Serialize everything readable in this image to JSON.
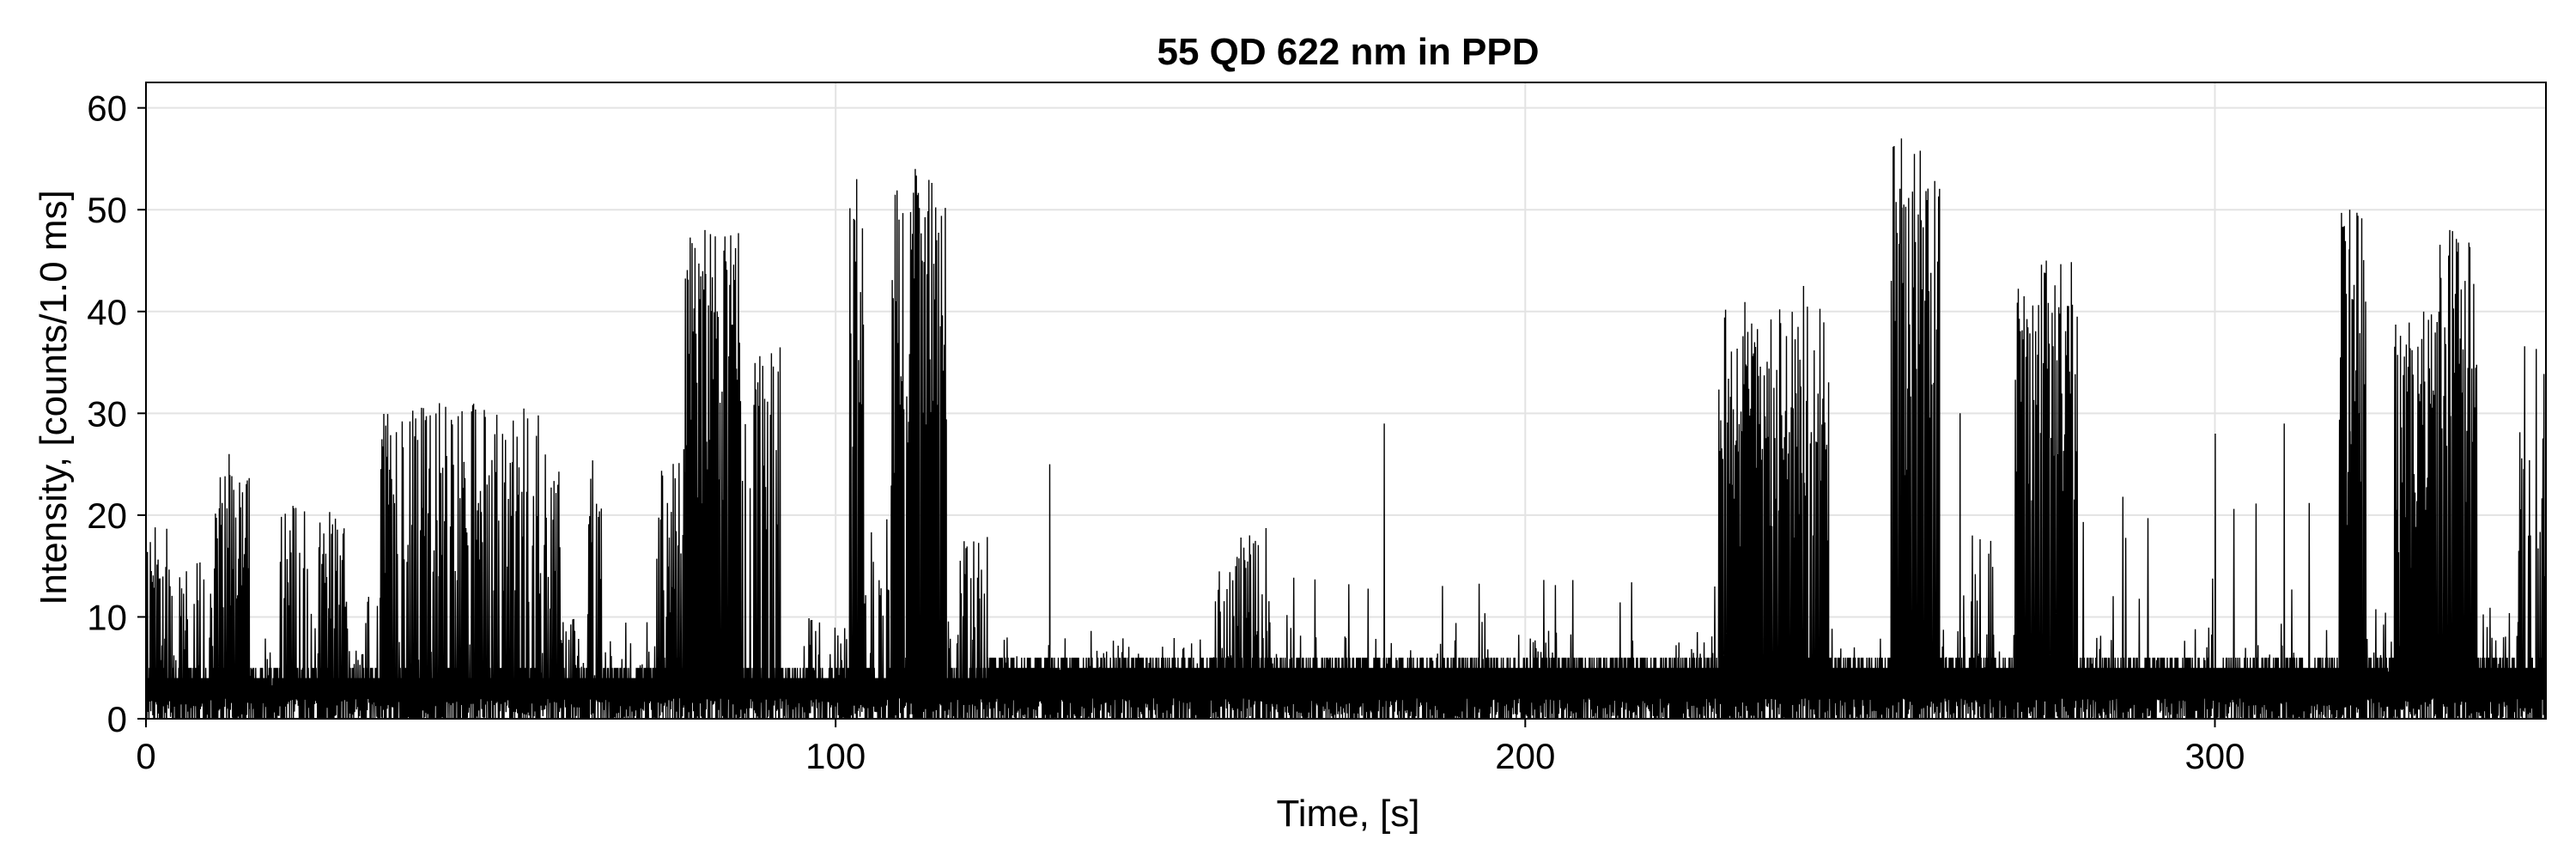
{
  "chart_data": {
    "type": "line",
    "title": "55 QD 622 nm in PPD",
    "xlabel": "Time, [s]",
    "ylabel": "Intensity, [counts/1.0 ms]",
    "xlim": [
      0,
      348
    ],
    "ylim": [
      0,
      62.5
    ],
    "xticks": [
      0,
      100,
      200,
      300
    ],
    "xtick_labels": [
      "0",
      "100",
      "200",
      "300"
    ],
    "yticks": [
      0,
      10,
      20,
      30,
      40,
      50,
      60
    ],
    "ytick_labels": [
      "0",
      "10",
      "20",
      "30",
      "40",
      "50",
      "60"
    ],
    "grid": true,
    "series": [
      {
        "name": "intensity trace",
        "color": "#000000",
        "segments": [
          {
            "start": 0,
            "end": 3,
            "baseline": 4,
            "on_max": 19,
            "on_fraction": 0.7
          },
          {
            "start": 3,
            "end": 10,
            "baseline": 4,
            "on_max": 16,
            "on_fraction": 0.5
          },
          {
            "start": 10,
            "end": 15,
            "baseline": 4,
            "on_max": 24,
            "on_fraction": 0.8
          },
          {
            "start": 15,
            "end": 19,
            "baseline": 4,
            "on_max": 6,
            "on_fraction": 0.1
          },
          {
            "start": 19,
            "end": 29,
            "baseline": 4,
            "on_max": 21,
            "on_fraction": 0.6
          },
          {
            "start": 29,
            "end": 34,
            "baseline": 4,
            "on_max": 12,
            "on_fraction": 0.3
          },
          {
            "start": 34,
            "end": 57,
            "baseline": 4,
            "on_max": 31,
            "on_fraction": 0.7
          },
          {
            "start": 57,
            "end": 60,
            "baseline": 4,
            "on_max": 26,
            "on_fraction": 0.5
          },
          {
            "start": 60,
            "end": 64,
            "baseline": 4,
            "on_max": 10,
            "on_fraction": 0.3
          },
          {
            "start": 64,
            "end": 66,
            "baseline": 4,
            "on_max": 26,
            "on_fraction": 0.6
          },
          {
            "start": 66,
            "end": 74,
            "baseline": 4,
            "on_max": 10,
            "on_fraction": 0.2
          },
          {
            "start": 74,
            "end": 78,
            "baseline": 5,
            "on_max": 27,
            "on_fraction": 0.8
          },
          {
            "start": 78,
            "end": 86,
            "baseline": 5,
            "on_max": 48,
            "on_fraction": 0.95
          },
          {
            "start": 86,
            "end": 92,
            "baseline": 4,
            "on_max": 37,
            "on_fraction": 0.6
          },
          {
            "start": 92,
            "end": 102,
            "baseline": 4,
            "on_max": 10,
            "on_fraction": 0.2
          },
          {
            "start": 102,
            "end": 104,
            "baseline": 4,
            "on_max": 53,
            "on_fraction": 0.9
          },
          {
            "start": 104,
            "end": 108,
            "baseline": 4,
            "on_max": 20,
            "on_fraction": 0.5
          },
          {
            "start": 108,
            "end": 116,
            "baseline": 5,
            "on_max": 54,
            "on_fraction": 0.95
          },
          {
            "start": 116,
            "end": 118,
            "baseline": 4,
            "on_max": 10,
            "on_fraction": 0.3
          },
          {
            "start": 118,
            "end": 122,
            "baseline": 4,
            "on_max": 18,
            "on_fraction": 0.6
          },
          {
            "start": 122,
            "end": 155,
            "baseline": 5,
            "on_max": 9,
            "on_fraction": 0.05
          },
          {
            "start": 155,
            "end": 158,
            "baseline": 5,
            "on_max": 16,
            "on_fraction": 0.5
          },
          {
            "start": 158,
            "end": 163,
            "baseline": 5,
            "on_max": 19,
            "on_fraction": 0.6
          },
          {
            "start": 163,
            "end": 228,
            "baseline": 5,
            "on_max": 14,
            "on_fraction": 0.03
          },
          {
            "start": 228,
            "end": 240,
            "baseline": 5,
            "on_max": 41,
            "on_fraction": 0.9
          },
          {
            "start": 240,
            "end": 244,
            "baseline": 5,
            "on_max": 43,
            "on_fraction": 0.8
          },
          {
            "start": 244,
            "end": 253,
            "baseline": 5,
            "on_max": 10,
            "on_fraction": 0.1
          },
          {
            "start": 253,
            "end": 260,
            "baseline": 5,
            "on_max": 57,
            "on_fraction": 0.9
          },
          {
            "start": 260,
            "end": 271,
            "baseline": 5,
            "on_max": 18,
            "on_fraction": 0.1
          },
          {
            "start": 271,
            "end": 280,
            "baseline": 5,
            "on_max": 45,
            "on_fraction": 0.9
          },
          {
            "start": 280,
            "end": 318,
            "baseline": 5,
            "on_max": 22,
            "on_fraction": 0.06
          },
          {
            "start": 318,
            "end": 322,
            "baseline": 5,
            "on_max": 50,
            "on_fraction": 0.9
          },
          {
            "start": 322,
            "end": 326,
            "baseline": 5,
            "on_max": 11,
            "on_fraction": 0.2
          },
          {
            "start": 326,
            "end": 332,
            "baseline": 5,
            "on_max": 40,
            "on_fraction": 0.9
          },
          {
            "start": 332,
            "end": 338,
            "baseline": 5,
            "on_max": 48,
            "on_fraction": 0.9
          },
          {
            "start": 338,
            "end": 344,
            "baseline": 5,
            "on_max": 11,
            "on_fraction": 0.2
          },
          {
            "start": 344,
            "end": 348,
            "baseline": 5,
            "on_max": 37,
            "on_fraction": 0.6
          }
        ],
        "peaks": [
          {
            "x": 103.0,
            "y": 53
          },
          {
            "x": 111.5,
            "y": 54
          },
          {
            "x": 81.0,
            "y": 48
          },
          {
            "x": 254.5,
            "y": 57
          },
          {
            "x": 319.5,
            "y": 50
          },
          {
            "x": 334.0,
            "y": 48
          },
          {
            "x": 275.5,
            "y": 45
          },
          {
            "x": 131.0,
            "y": 25
          },
          {
            "x": 179.5,
            "y": 29
          },
          {
            "x": 42.5,
            "y": 31
          },
          {
            "x": 12.0,
            "y": 26
          },
          {
            "x": 263.0,
            "y": 30
          },
          {
            "x": 300.0,
            "y": 28
          },
          {
            "x": 310.0,
            "y": 29
          }
        ]
      }
    ]
  }
}
